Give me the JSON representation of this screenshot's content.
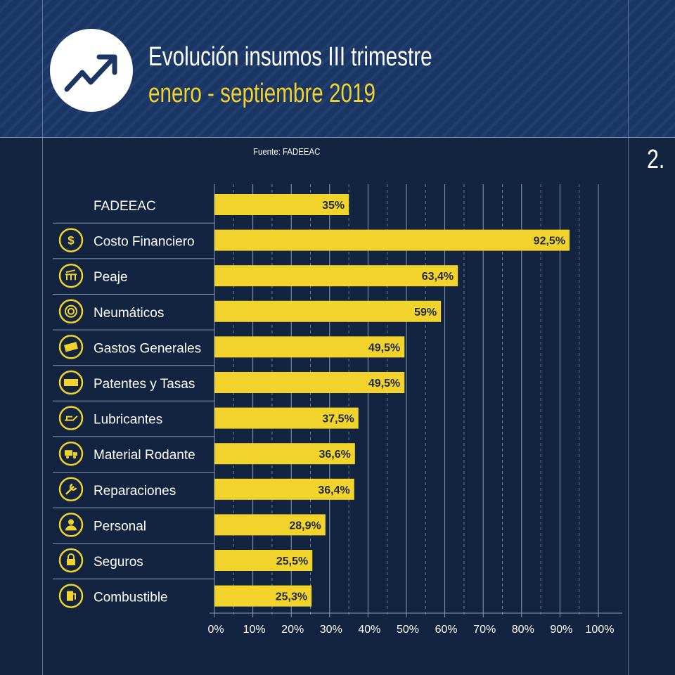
{
  "header": {
    "title": "Evolución insumos III trimestre",
    "subtitle": "enero - septiembre 2019",
    "icon": "trending-up-icon"
  },
  "source": "Fuente: FADEEAC",
  "page_number": "2.",
  "colors": {
    "background": "#122440",
    "header": "#1b3663",
    "bar": "#f2d32b",
    "accent": "#f2d32b",
    "text": "#ffffff"
  },
  "chart_data": {
    "type": "bar",
    "orientation": "horizontal",
    "title": "Evolución insumos III trimestre",
    "subtitle": "enero - septiembre 2019",
    "categories": [
      "FADEEAC",
      "Costo Financiero",
      "Peaje",
      "Neumáticos",
      "Gastos Generales",
      "Patentes y Tasas",
      "Lubricantes",
      "Material Rodante",
      "Reparaciones",
      "Personal",
      "Seguros",
      "Combustible"
    ],
    "icons": [
      "",
      "dollar-icon",
      "toll-booth-icon",
      "tire-icon",
      "banknote-icon",
      "license-plate-icon",
      "oil-can-icon",
      "truck-icon",
      "wrench-icon",
      "person-icon",
      "lock-icon",
      "fuel-pump-icon"
    ],
    "values": [
      35,
      92.5,
      63.4,
      59,
      49.5,
      49.5,
      37.5,
      36.6,
      36.4,
      28.9,
      25.5,
      25.3
    ],
    "data_labels": [
      "35%",
      "92,5%",
      "63,4%",
      "59%",
      "49,5%",
      "49,5%",
      "37,5%",
      "36,6%",
      "36,4%",
      "28,9%",
      "25,5%",
      "25,3%"
    ],
    "xlim": [
      0,
      100
    ],
    "xticks": [
      "0%",
      "10%",
      "20%",
      "30%",
      "40%",
      "50%",
      "60%",
      "70%",
      "80%",
      "90%",
      "100%"
    ],
    "grid": true
  }
}
